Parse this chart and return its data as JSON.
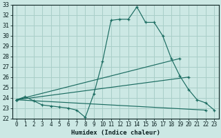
{
  "xlabel": "Humidex (Indice chaleur)",
  "xlim": [
    -0.5,
    23.5
  ],
  "ylim": [
    22,
    33
  ],
  "xticks": [
    0,
    1,
    2,
    3,
    4,
    5,
    6,
    7,
    8,
    9,
    10,
    11,
    12,
    13,
    14,
    15,
    16,
    17,
    18,
    19,
    20,
    21,
    22,
    23
  ],
  "yticks": [
    22,
    23,
    24,
    25,
    26,
    27,
    28,
    29,
    30,
    31,
    32,
    33
  ],
  "bg_color": "#cce8e4",
  "grid_color": "#a8cec8",
  "line_color": "#1a6b60",
  "series": [
    {
      "x": [
        0,
        1,
        2,
        3,
        4,
        5,
        6,
        7,
        8,
        9,
        10,
        11,
        12,
        13,
        14,
        15,
        16,
        17,
        18,
        19,
        20,
        21,
        22,
        23
      ],
      "y": [
        23.8,
        24.1,
        23.7,
        23.3,
        23.2,
        23.1,
        23.0,
        22.8,
        22.1,
        24.4,
        27.5,
        31.5,
        31.6,
        31.6,
        32.8,
        31.3,
        31.3,
        30.0,
        27.8,
        26.1,
        24.8,
        23.8,
        23.5,
        22.8
      ],
      "has_markers": true
    },
    {
      "x": [
        0,
        19
      ],
      "y": [
        23.8,
        27.8
      ],
      "has_markers": true
    },
    {
      "x": [
        0,
        20
      ],
      "y": [
        23.8,
        26.0
      ],
      "has_markers": true
    },
    {
      "x": [
        0,
        22
      ],
      "y": [
        23.8,
        22.8
      ],
      "has_markers": true
    }
  ]
}
